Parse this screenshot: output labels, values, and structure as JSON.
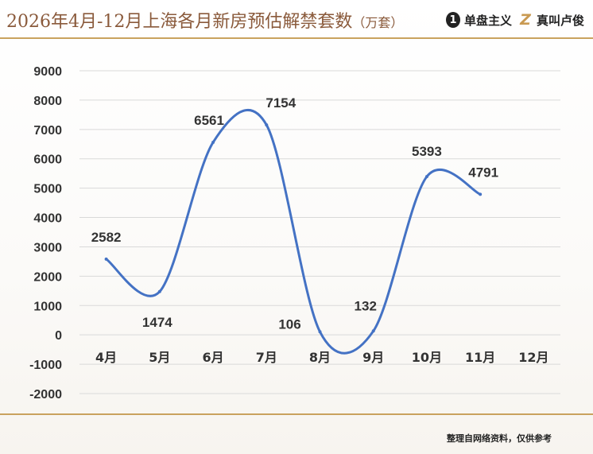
{
  "header": {
    "title_main": "2026年4月-12月上海各月新房预估解禁套数",
    "title_unit": "（万套）",
    "logo1_mark": "1",
    "logo1_text": "单盘主义",
    "logo2_mark": "Z",
    "logo2_text": "真叫卢俊"
  },
  "footer": {
    "note": "整理自网络资料，仅供参考"
  },
  "colors": {
    "line": "#4472c4",
    "title": "#8a5a3b",
    "rule": "#c9a25e"
  },
  "chart_data": {
    "type": "line",
    "smooth": true,
    "categories": [
      "4月",
      "5月",
      "6月",
      "7月",
      "8月",
      "9月",
      "10月",
      "11月",
      "12月"
    ],
    "values": [
      2582,
      1474,
      6561,
      7154,
      106,
      132,
      5393,
      4791,
      null
    ],
    "data_labels": [
      "2582",
      "1474",
      "6561",
      "7154",
      "106",
      "132",
      "5393",
      "4791",
      ""
    ],
    "yticks": [
      "9000",
      "8000",
      "7000",
      "6000",
      "5000",
      "4000",
      "3000",
      "2000",
      "1000",
      "0",
      "-1000",
      "-2000"
    ],
    "ylim": [
      -2000,
      9000
    ],
    "grid": true,
    "title": "",
    "xlabel": "",
    "ylabel": ""
  }
}
